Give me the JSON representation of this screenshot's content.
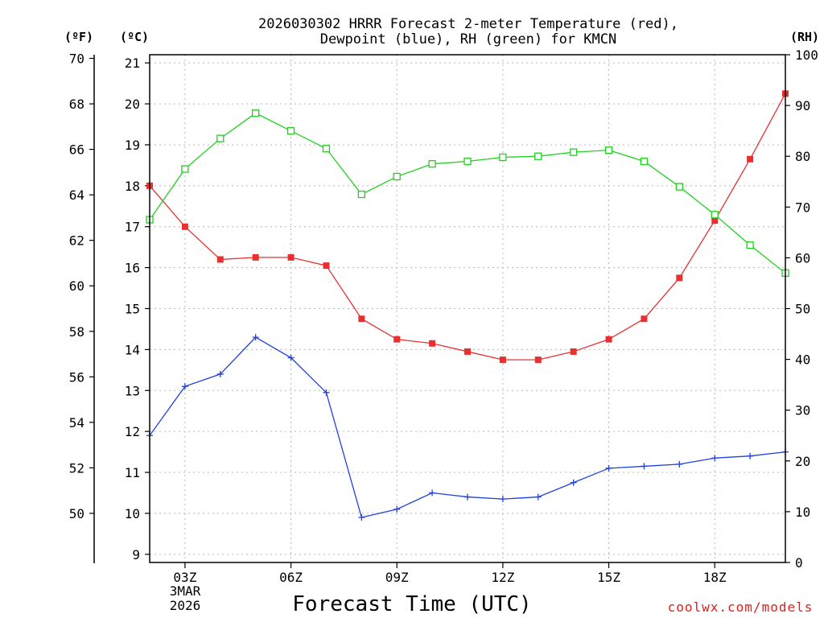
{
  "chart_data": {
    "type": "line",
    "title_lines": [
      "2026030302 HRRR Forecast 2-meter Temperature (red),",
      "Dewpoint (blue), RH (green) for KMCN"
    ],
    "xlabel": "Forecast Time (UTC)",
    "credit": "coolwx.com/models",
    "unit_labels": {
      "fahrenheit": "(ºF)",
      "celsius": "(ºC)",
      "rh": "(RH)"
    },
    "x_hours": [
      2,
      3,
      4,
      5,
      6,
      7,
      8,
      9,
      10,
      11,
      12,
      13,
      14,
      15,
      16,
      17,
      18,
      19,
      20
    ],
    "xlim": [
      2,
      20
    ],
    "x_ticks": [
      {
        "hour": 3,
        "label": "03Z"
      },
      {
        "hour": 6,
        "label": "06Z"
      },
      {
        "hour": 9,
        "label": "09Z"
      },
      {
        "hour": 12,
        "label": "12Z"
      },
      {
        "hour": 15,
        "label": "15Z"
      },
      {
        "hour": 18,
        "label": "18Z"
      }
    ],
    "date_label": [
      "3MAR",
      "2026"
    ],
    "y_celsius": {
      "range": [
        8.8,
        21.2
      ],
      "ticks": [
        9,
        10,
        11,
        12,
        13,
        14,
        15,
        16,
        17,
        18,
        19,
        20,
        21
      ]
    },
    "y_fahrenheit": {
      "range": [
        47.84,
        70.16
      ],
      "ticks": [
        50,
        52,
        54,
        56,
        58,
        60,
        62,
        64,
        66,
        68,
        70
      ]
    },
    "y_rh": {
      "range": [
        0,
        100
      ],
      "ticks": [
        0,
        10,
        20,
        30,
        40,
        50,
        60,
        70,
        80,
        90,
        100
      ]
    },
    "series": [
      {
        "name": "Temperature",
        "color": "#e83030",
        "marker": "filled-square",
        "axis": "celsius",
        "values": [
          18.0,
          17.0,
          16.2,
          16.25,
          16.25,
          16.05,
          14.75,
          14.25,
          14.15,
          13.95,
          13.75,
          13.75,
          13.95,
          14.25,
          14.75,
          15.75,
          17.15,
          18.65,
          20.25
        ]
      },
      {
        "name": "Dewpoint",
        "color": "#2040e0",
        "marker": "plus",
        "axis": "celsius",
        "values": [
          11.9,
          13.1,
          13.4,
          14.3,
          13.8,
          12.95,
          9.9,
          10.1,
          10.5,
          10.4,
          10.35,
          10.4,
          10.75,
          11.1,
          11.15,
          11.2,
          11.35,
          11.4,
          11.5
        ]
      },
      {
        "name": "RH",
        "color": "#20d020",
        "marker": "open-square",
        "axis": "rh",
        "values": [
          67.5,
          77.5,
          83.5,
          88.5,
          85.0,
          81.5,
          72.5,
          76.0,
          78.5,
          79.0,
          79.8,
          80.0,
          80.8,
          81.2,
          79.0,
          74.0,
          68.5,
          62.5,
          57.0
        ]
      }
    ]
  }
}
